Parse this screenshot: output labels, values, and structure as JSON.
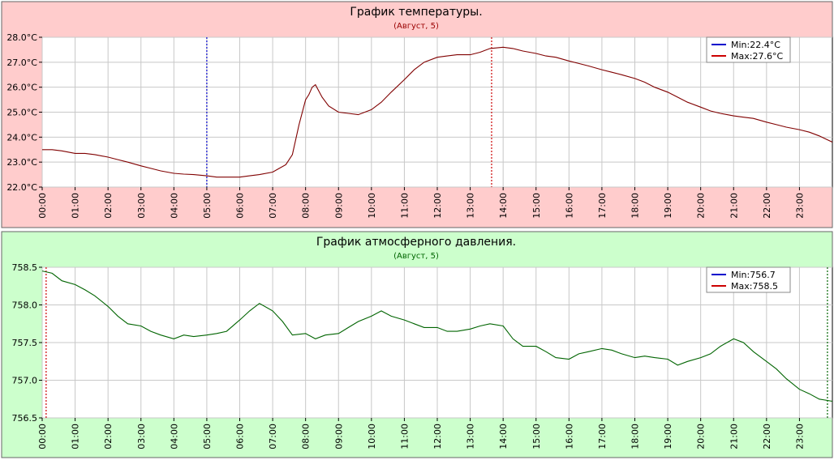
{
  "chart_data": [
    {
      "type": "line",
      "title": "График температуры.",
      "subtitle": "(Август,  5)",
      "background": "#ffcccc",
      "line_color": "#800000",
      "ytick_labels": [
        "22.0°C",
        "23.0°C",
        "24.0°C",
        "25.0°C",
        "26.0°C",
        "27.0°C",
        "28.0°C"
      ],
      "ylim": [
        22.0,
        28.0
      ],
      "xlim": [
        0,
        24
      ],
      "xtick_labels": [
        "00:00",
        "01:00",
        "02:00",
        "03:00",
        "04:00",
        "05:00",
        "06:00",
        "07:00",
        "08:00",
        "09:00",
        "10:00",
        "11:00",
        "12:00",
        "13:00",
        "14:00",
        "15:00",
        "16:00",
        "17:00",
        "18:00",
        "19:00",
        "20:00",
        "21:00",
        "22:00",
        "23:00"
      ],
      "legend": {
        "placement": "top-right",
        "entries": [
          {
            "label": "Min:22.4°C",
            "color": "#0000cc"
          },
          {
            "label": "Max:27.6°C",
            "color": "#cc0000"
          }
        ]
      },
      "markers": [
        {
          "x": 5.0,
          "color": "#0000cc",
          "style": "dotted"
        },
        {
          "x": 13.65,
          "color": "#cc0000",
          "style": "dotted"
        }
      ],
      "x": [
        0,
        0.3,
        0.6,
        1,
        1.3,
        1.6,
        2,
        2.3,
        2.6,
        3,
        3.3,
        3.6,
        4,
        4.3,
        4.6,
        5,
        5.3,
        5.6,
        6,
        6.3,
        6.6,
        7,
        7.2,
        7.4,
        7.6,
        7.8,
        8,
        8.1,
        8.2,
        8.3,
        8.5,
        8.7,
        9,
        9.3,
        9.6,
        10,
        10.3,
        10.6,
        11,
        11.3,
        11.6,
        12,
        12.3,
        12.6,
        13,
        13.3,
        13.6,
        14,
        14.3,
        14.6,
        15,
        15.3,
        15.6,
        16,
        16.3,
        16.6,
        17,
        17.3,
        17.6,
        18,
        18.3,
        18.6,
        19,
        19.3,
        19.6,
        20,
        20.3,
        20.6,
        21,
        21.3,
        21.6,
        22,
        22.3,
        22.6,
        23,
        23.3,
        23.6,
        24
      ],
      "y": [
        23.5,
        23.5,
        23.45,
        23.35,
        23.35,
        23.3,
        23.2,
        23.1,
        23.0,
        22.85,
        22.75,
        22.65,
        22.55,
        22.52,
        22.5,
        22.45,
        22.4,
        22.4,
        22.4,
        22.45,
        22.5,
        22.6,
        22.75,
        22.9,
        23.3,
        24.5,
        25.5,
        25.7,
        26.0,
        26.1,
        25.6,
        25.25,
        25.0,
        24.95,
        24.9,
        25.1,
        25.4,
        25.8,
        26.3,
        26.7,
        27.0,
        27.2,
        27.25,
        27.3,
        27.3,
        27.4,
        27.55,
        27.6,
        27.55,
        27.45,
        27.35,
        27.25,
        27.2,
        27.05,
        26.95,
        26.85,
        26.7,
        26.6,
        26.5,
        26.35,
        26.2,
        26.0,
        25.8,
        25.6,
        25.4,
        25.2,
        25.05,
        24.95,
        24.85,
        24.8,
        24.75,
        24.6,
        24.5,
        24.4,
        24.3,
        24.2,
        24.05,
        23.8
      ]
    },
    {
      "type": "line",
      "title": "График атмосферного давления.",
      "subtitle": "(Август,  5)",
      "background": "#ccffcc",
      "line_color": "#006400",
      "ytick_labels": [
        "756.5",
        "757.0",
        "757.5",
        "758.0",
        "758.5"
      ],
      "ylim": [
        756.5,
        758.5
      ],
      "xlim": [
        0,
        24
      ],
      "xtick_labels": [
        "00:00",
        "01:00",
        "02:00",
        "03:00",
        "04:00",
        "05:00",
        "06:00",
        "07:00",
        "08:00",
        "09:00",
        "10:00",
        "11:00",
        "12:00",
        "13:00",
        "14:00",
        "15:00",
        "16:00",
        "17:00",
        "18:00",
        "19:00",
        "20:00",
        "21:00",
        "22:00",
        "23:00"
      ],
      "legend": {
        "placement": "top-right",
        "entries": [
          {
            "label": "Min:756.7",
            "color": "#0000cc"
          },
          {
            "label": "Max:758.5",
            "color": "#cc0000"
          }
        ]
      },
      "markers": [
        {
          "x": 0.12,
          "color": "#cc0000",
          "style": "dotted"
        },
        {
          "x": 23.85,
          "color": "#006400",
          "style": "dotted"
        }
      ],
      "x": [
        0,
        0.3,
        0.6,
        1,
        1.3,
        1.6,
        2,
        2.3,
        2.6,
        3,
        3.3,
        3.6,
        4,
        4.3,
        4.6,
        5,
        5.3,
        5.6,
        6,
        6.3,
        6.6,
        7,
        7.3,
        7.6,
        8,
        8.3,
        8.6,
        9,
        9.3,
        9.6,
        10,
        10.3,
        10.6,
        11,
        11.3,
        11.6,
        12,
        12.3,
        12.6,
        13,
        13.3,
        13.6,
        14,
        14.3,
        14.6,
        15,
        15.3,
        15.6,
        16,
        16.3,
        16.6,
        17,
        17.3,
        17.6,
        18,
        18.3,
        18.6,
        19,
        19.3,
        19.6,
        20,
        20.3,
        20.6,
        21,
        21.3,
        21.6,
        22,
        22.3,
        22.6,
        23,
        23.3,
        23.6,
        24
      ],
      "y": [
        758.45,
        758.42,
        758.32,
        758.27,
        758.2,
        758.12,
        757.98,
        757.85,
        757.75,
        757.72,
        757.65,
        757.6,
        757.55,
        757.6,
        757.58,
        757.6,
        757.62,
        757.65,
        757.8,
        757.92,
        758.02,
        757.92,
        757.78,
        757.6,
        757.62,
        757.55,
        757.6,
        757.62,
        757.7,
        757.78,
        757.85,
        757.92,
        757.85,
        757.8,
        757.75,
        757.7,
        757.7,
        757.65,
        757.65,
        757.68,
        757.72,
        757.75,
        757.72,
        757.55,
        757.45,
        757.45,
        757.38,
        757.3,
        757.28,
        757.35,
        757.38,
        757.42,
        757.4,
        757.35,
        757.3,
        757.32,
        757.3,
        757.28,
        757.2,
        757.25,
        757.3,
        757.35,
        757.45,
        757.55,
        757.5,
        757.38,
        757.25,
        757.15,
        757.02,
        756.88,
        756.82,
        756.75,
        756.72
      ]
    }
  ]
}
